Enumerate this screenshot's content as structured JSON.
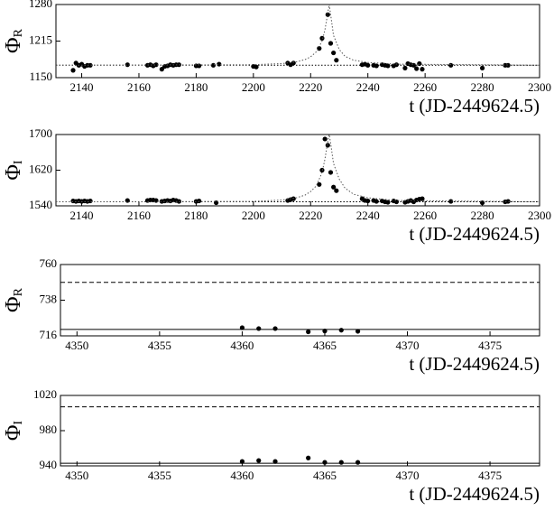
{
  "chart_data": [
    {
      "type": "scatter",
      "ylabel": "Φ",
      "ylabel_sub": "R",
      "xlabel": "t (JD-2449624.5)",
      "xlim": [
        2131,
        2300
      ],
      "ylim": [
        1150,
        1280
      ],
      "xticks": [
        2140,
        2160,
        2180,
        2200,
        2220,
        2240,
        2260,
        2280,
        2300
      ],
      "yticks": [
        1150,
        1215,
        1280
      ],
      "hlines": [
        {
          "value": 1172,
          "style": "dotted"
        }
      ],
      "series": [
        {
          "style": "dots",
          "color": "#000000",
          "x": [
            2137,
            2138,
            2139,
            2140,
            2141,
            2142,
            2143,
            2156,
            2163,
            2164,
            2165,
            2166,
            2168,
            2169,
            2170,
            2171,
            2172,
            2173,
            2174,
            2180,
            2181,
            2186,
            2188,
            2200,
            2201,
            2212,
            2213,
            2214,
            2223,
            2224,
            2226,
            2227,
            2228,
            2229,
            2238,
            2239,
            2240,
            2242,
            2243,
            2245,
            2246,
            2247,
            2249,
            2250,
            2253,
            2254,
            2255,
            2256,
            2257,
            2258,
            2259,
            2269,
            2280,
            2288,
            2289
          ],
          "values": [
            1163,
            1176,
            1172,
            1174,
            1170,
            1172,
            1172,
            1173,
            1172,
            1173,
            1171,
            1173,
            1165,
            1170,
            1171,
            1173,
            1172,
            1173,
            1173,
            1171,
            1171,
            1172,
            1174,
            1170,
            1169,
            1176,
            1173,
            1176,
            1202,
            1220,
            1262,
            1211,
            1194,
            1181,
            1173,
            1174,
            1172,
            1172,
            1171,
            1173,
            1172,
            1171,
            1171,
            1173,
            1167,
            1175,
            1173,
            1172,
            1166,
            1175,
            1165,
            1172,
            1167,
            1172,
            1172
          ]
        },
        {
          "style": "dotted",
          "color": "#555555",
          "x": [
            2131,
            2200,
            2210,
            2215,
            2218,
            2220,
            2222,
            2224,
            2225,
            2226,
            2226.5,
            2227,
            2228,
            2230,
            2232,
            2235,
            2240,
            2250,
            2300
          ],
          "values": [
            1172,
            1173,
            1175,
            1178,
            1182,
            1187,
            1196,
            1215,
            1235,
            1265,
            1280,
            1262,
            1225,
            1200,
            1188,
            1181,
            1177,
            1174,
            1172
          ]
        }
      ]
    },
    {
      "type": "scatter",
      "ylabel": "Φ",
      "ylabel_sub": "I",
      "xlabel": "t (JD-2449624.5)",
      "xlim": [
        2131,
        2300
      ],
      "ylim": [
        1540,
        1700
      ],
      "xticks": [
        2140,
        2160,
        2180,
        2200,
        2220,
        2240,
        2260,
        2280,
        2300
      ],
      "yticks": [
        1540,
        1620,
        1700
      ],
      "hlines": [
        {
          "value": 1549,
          "style": "dotted"
        }
      ],
      "series": [
        {
          "style": "dots",
          "color": "#000000",
          "x": [
            2137,
            2138,
            2139,
            2140,
            2141,
            2142,
            2143,
            2156,
            2163,
            2164,
            2165,
            2166,
            2168,
            2169,
            2170,
            2171,
            2172,
            2173,
            2174,
            2180,
            2181,
            2187,
            2212,
            2213,
            2214,
            2223,
            2224,
            2225,
            2226,
            2227,
            2228,
            2229,
            2238,
            2239,
            2240,
            2242,
            2243,
            2245,
            2246,
            2247,
            2249,
            2250,
            2253,
            2254,
            2255,
            2256,
            2257,
            2258,
            2259,
            2269,
            2280,
            2288,
            2289
          ],
          "values": [
            1551,
            1550,
            1551,
            1550,
            1551,
            1550,
            1551,
            1552,
            1552,
            1553,
            1553,
            1552,
            1550,
            1551,
            1552,
            1551,
            1553,
            1552,
            1550,
            1550,
            1551,
            1547,
            1552,
            1554,
            1556,
            1588,
            1620,
            1690,
            1676,
            1615,
            1582,
            1574,
            1556,
            1552,
            1551,
            1552,
            1550,
            1551,
            1549,
            1548,
            1551,
            1549,
            1548,
            1550,
            1552,
            1549,
            1553,
            1555,
            1556,
            1550,
            1547,
            1549,
            1550
          ]
        },
        {
          "style": "dotted",
          "color": "#555555",
          "x": [
            2131,
            2200,
            2210,
            2215,
            2218,
            2220,
            2222,
            2224,
            2225,
            2226,
            2226.5,
            2227,
            2228,
            2230,
            2232,
            2235,
            2240,
            2250,
            2300
          ],
          "values": [
            1549,
            1550,
            1553,
            1558,
            1564,
            1572,
            1585,
            1615,
            1645,
            1685,
            1700,
            1680,
            1635,
            1600,
            1580,
            1566,
            1558,
            1552,
            1549
          ]
        }
      ]
    },
    {
      "type": "scatter",
      "ylabel": "Φ",
      "ylabel_sub": "R",
      "xlabel": "t (JD-2449624.5)",
      "xlim": [
        4349,
        4378
      ],
      "ylim": [
        716,
        760
      ],
      "xticks": [
        4350,
        4355,
        4360,
        4365,
        4370,
        4375
      ],
      "yticks": [
        716,
        738,
        760
      ],
      "hlines": [
        {
          "value": 720,
          "style": "solid"
        },
        {
          "value": 749,
          "style": "dashed"
        }
      ],
      "series": [
        {
          "style": "dots",
          "color": "#000000",
          "x": [
            4360,
            4361,
            4362,
            4364,
            4365,
            4366,
            4367
          ],
          "values": [
            721,
            720.5,
            720.5,
            718.5,
            719,
            719.5,
            718.8
          ]
        }
      ]
    },
    {
      "type": "scatter",
      "ylabel": "Φ",
      "ylabel_sub": "I",
      "xlabel": "t (JD-2449624.5)",
      "xlim": [
        4349,
        4378
      ],
      "ylim": [
        940,
        1020
      ],
      "xticks": [
        4350,
        4355,
        4360,
        4365,
        4370,
        4375
      ],
      "yticks": [
        940,
        980,
        1020
      ],
      "hlines": [
        {
          "value": 943,
          "style": "solid"
        },
        {
          "value": 1007,
          "style": "dashed"
        }
      ],
      "series": [
        {
          "style": "dots",
          "color": "#000000",
          "x": [
            4360,
            4361,
            4362,
            4364,
            4365,
            4366,
            4367
          ],
          "values": [
            945,
            946,
            945,
            949,
            944,
            944,
            944
          ]
        }
      ]
    }
  ]
}
